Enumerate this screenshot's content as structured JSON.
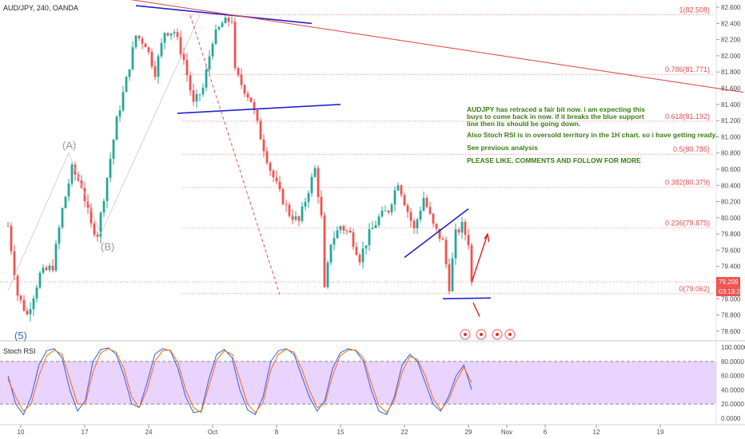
{
  "header": {
    "symbol": "AUD/JPY, 240, OANDA"
  },
  "indicator": {
    "title": "Stoch RSI"
  },
  "colors": {
    "up": "#26a69a",
    "down": "#ef5350",
    "k": "#2962ff",
    "d": "#ff6d00",
    "trend": "#2222cc",
    "fib": "#e05050",
    "band": "#e1c4ff"
  },
  "chart_data": [
    {
      "type": "candlestick",
      "title": "AUD/JPY, 240, OANDA",
      "ylim": [
        78.5,
        82.65
      ],
      "y_ticks": [
        "82.600",
        "82.400",
        "82.200",
        "82.000",
        "81.800",
        "81.600",
        "81.400",
        "81.200",
        "81.000",
        "80.800",
        "80.600",
        "80.400",
        "80.200",
        "80.000",
        "79.800",
        "79.600",
        "79.400",
        "79.200",
        "79.000",
        "78.800",
        "78.600"
      ],
      "x_ticks": [
        {
          "label": "10",
          "i": 4
        },
        {
          "label": "17",
          "i": 24
        },
        {
          "label": "24",
          "i": 44
        },
        {
          "label": "Oct",
          "i": 64
        },
        {
          "label": "8",
          "i": 84
        },
        {
          "label": "15",
          "i": 104
        },
        {
          "label": "22",
          "i": 124
        },
        {
          "label": "29",
          "i": 144
        },
        {
          "label": "Nov",
          "i": 156
        },
        {
          "label": "6",
          "i": 168
        },
        {
          "label": "12",
          "i": 184
        },
        {
          "label": "19",
          "i": 204
        }
      ],
      "path": [
        [
          0,
          79.9
        ],
        [
          3,
          79.05
        ],
        [
          6,
          78.8
        ],
        [
          10,
          79.3
        ],
        [
          14,
          79.4
        ],
        [
          17,
          80.1
        ],
        [
          20,
          80.6
        ],
        [
          23,
          80.4
        ],
        [
          26,
          79.9
        ],
        [
          28,
          79.8
        ],
        [
          31,
          80.5
        ],
        [
          34,
          81.2
        ],
        [
          37,
          81.7
        ],
        [
          40,
          82.25
        ],
        [
          43,
          82.15
        ],
        [
          46,
          81.8
        ],
        [
          49,
          82.3
        ],
        [
          52,
          82.3
        ],
        [
          55,
          81.95
        ],
        [
          58,
          81.4
        ],
        [
          61,
          81.6
        ],
        [
          64,
          82.2
        ],
        [
          67,
          82.4
        ],
        [
          70,
          82.45
        ],
        [
          71,
          81.8
        ],
        [
          73,
          81.65
        ],
        [
          76,
          81.45
        ],
        [
          79,
          81.0
        ],
        [
          82,
          80.6
        ],
        [
          85,
          80.3
        ],
        [
          88,
          80.05
        ],
        [
          91,
          79.95
        ],
        [
          94,
          80.35
        ],
        [
          96,
          80.6
        ],
        [
          98,
          80.0
        ],
        [
          99,
          79.1
        ],
        [
          101,
          79.7
        ],
        [
          104,
          79.9
        ],
        [
          107,
          79.8
        ],
        [
          110,
          79.5
        ],
        [
          113,
          79.8
        ],
        [
          116,
          80.0
        ],
        [
          119,
          80.1
        ],
        [
          122,
          80.45
        ],
        [
          124,
          80.2
        ],
        [
          127,
          79.85
        ],
        [
          130,
          80.25
        ],
        [
          133,
          79.9
        ],
        [
          136,
          79.7
        ],
        [
          138,
          79.15
        ],
        [
          140,
          79.8
        ],
        [
          142,
          79.9
        ],
        [
          144,
          79.7
        ],
        [
          145,
          79.209
        ]
      ],
      "current_price": "79.209",
      "countdown": "03:18:22",
      "fib_levels": [
        {
          "label": "1(82.508)",
          "value": 82.508
        },
        {
          "label": "0.786(81.771)",
          "value": 81.771
        },
        {
          "label": "0.618(81.192)",
          "value": 81.192
        },
        {
          "label": "0.5(80.785)",
          "value": 80.785
        },
        {
          "label": "0.382(80.379)",
          "value": 80.379
        },
        {
          "label": "0.236(79.875)",
          "value": 79.875
        },
        {
          "label": "0(79.062)",
          "value": 79.062
        }
      ],
      "trendlines": [
        {
          "i1": 40,
          "v1": 82.62,
          "i2": 95,
          "v2": 82.4,
          "color": "#2222cc"
        },
        {
          "i1": 53,
          "v1": 81.29,
          "i2": 104,
          "v2": 81.4,
          "color": "#2222cc"
        },
        {
          "i1": 124,
          "v1": 79.51,
          "i2": 144,
          "v2": 80.11,
          "color": "#2222cc"
        },
        {
          "i1": 136,
          "v1": 79.0,
          "i2": 151,
          "v2": 79.01,
          "color": "#2222cc"
        },
        {
          "i1": 29,
          "v1": 82.75,
          "i2": 230,
          "v2": 81.55,
          "color": "#e05050"
        }
      ],
      "wave_labels": [
        {
          "text": "(A)",
          "i": 19,
          "v": 80.85
        },
        {
          "text": "(B)",
          "i": 31,
          "v": 79.6
        },
        {
          "text": "(5)",
          "i": 4,
          "v": 78.5,
          "color": "#3070c0"
        }
      ],
      "annotation_lines": [
        "AUDJPY has retraced a fair bit now. i am expecting this",
        "buys to come back in now. if it breaks the blue support",
        "line then its should be going down.",
        "Also Stoch RSI is in oversold territory in the 1H chart. so i have getting ready.",
        "See previous analysis",
        "PLEASE LIKE, COMMENTS AND FOLLOW FOR MORE"
      ]
    },
    {
      "type": "line",
      "title": "Stoch RSI",
      "ylim": [
        0,
        100
      ],
      "y_ticks": [
        "100.0000",
        "80.0000",
        "60.0000",
        "40.0000",
        "20.0000",
        "0.0000"
      ],
      "band": [
        20,
        80
      ],
      "series": [
        {
          "name": "K",
          "color": "#2962ff",
          "values": [
            60,
            20,
            5,
            30,
            75,
            95,
            98,
            85,
            40,
            10,
            25,
            80,
            97,
            99,
            90,
            60,
            20,
            15,
            50,
            90,
            98,
            95,
            70,
            30,
            8,
            10,
            55,
            90,
            97,
            85,
            40,
            12,
            5,
            30,
            80,
            95,
            98,
            90,
            60,
            30,
            10,
            25,
            70,
            92,
            98,
            95,
            80,
            40,
            10,
            5,
            30,
            75,
            90,
            80,
            50,
            20,
            10,
            30,
            60,
            75,
            40
          ]
        },
        {
          "name": "D",
          "color": "#ff6d00",
          "values": [
            55,
            30,
            10,
            20,
            60,
            88,
            96,
            90,
            55,
            20,
            20,
            65,
            92,
            98,
            93,
            70,
            30,
            15,
            40,
            80,
            95,
            96,
            78,
            40,
            15,
            8,
            45,
            82,
            95,
            90,
            55,
            20,
            8,
            22,
            68,
            90,
            97,
            93,
            70,
            40,
            15,
            20,
            60,
            88,
            96,
            96,
            85,
            50,
            18,
            8,
            25,
            65,
            87,
            83,
            60,
            28,
            12,
            25,
            52,
            72,
            50
          ]
        }
      ]
    }
  ]
}
